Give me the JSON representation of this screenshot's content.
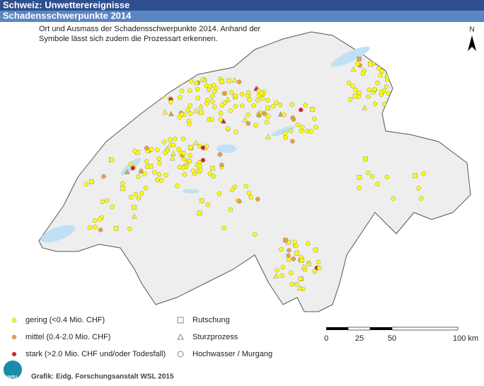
{
  "header": {
    "title": "Schweiz: Unwetterereignisse",
    "subtitle": "Schadensschwerpunkte 2014"
  },
  "description": [
    "Ort und Ausmass der Schadensschwerpunkte 2014. Anhand der",
    "Symbole lässt sich zudem die Prozessart erkennen."
  ],
  "north": "N",
  "legend": {
    "severity": [
      {
        "label": "gering (<0.4 Mio. CHF)",
        "color": "#ffff00"
      },
      {
        "label": "mittel (0.4-2.0 Mio. CHF)",
        "color": "#e8a040"
      },
      {
        "label": "stark (>2.0 Mio. CHF und/oder Todesfall)",
        "color": "#e02020"
      }
    ],
    "process": [
      "Rutschung",
      "Sturzprozess",
      "Hochwasser / Murgang"
    ]
  },
  "scale": [
    "0",
    "25",
    "50",
    "100 km"
  ],
  "footer": {
    "credit": "Grafik: Eidg. Forschungsanstalt WSL 2015",
    "logo": "WSL"
  }
}
